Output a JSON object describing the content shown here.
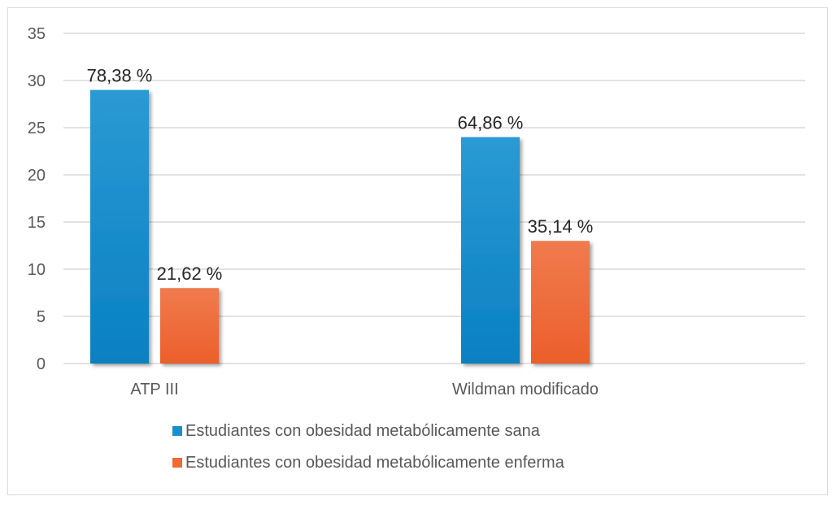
{
  "chart_data": {
    "type": "bar",
    "title": "",
    "xlabel": "",
    "ylabel": "",
    "ylim": [
      0,
      35
    ],
    "yticks": [
      0,
      5,
      10,
      15,
      20,
      25,
      30,
      35
    ],
    "grid": true,
    "legend_position": "bottom",
    "categories": [
      "ATP III",
      "Wildman modificado"
    ],
    "series": [
      {
        "name": "Estudiantes con obesidad metabólicamente sana",
        "color": "#1b8fcc",
        "values": [
          29,
          24
        ],
        "labels": [
          "78,38 %",
          "64,86 %"
        ]
      },
      {
        "name": "Estudiantes con obesidad metabólicamente enferma",
        "color": "#ef6a36",
        "values": [
          8,
          13
        ],
        "labels": [
          "21,62 %",
          "35,14 %"
        ]
      }
    ]
  }
}
